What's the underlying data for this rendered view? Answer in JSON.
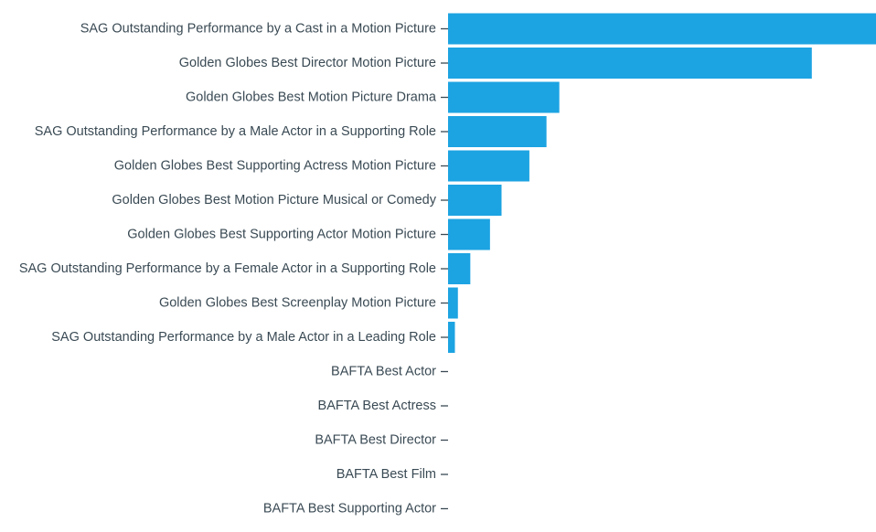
{
  "chart_data": {
    "type": "bar",
    "orientation": "horizontal",
    "title": "",
    "xlabel": "",
    "ylabel": "",
    "grid": false,
    "bar_color": "#1ca3e2",
    "text_color": "#3a4a54",
    "xlim": [
      0,
      100
    ],
    "categories": [
      "SAG Outstanding Performance by a Cast in a Motion Picture",
      "Golden Globes Best Director Motion Picture",
      "Golden Globes Best Motion Picture Drama",
      "SAG Outstanding Performance by a Male Actor in a Supporting Role",
      "Golden Globes Best Supporting Actress Motion Picture",
      "Golden Globes Best Motion Picture Musical or Comedy",
      "Golden Globes Best Supporting Actor Motion Picture",
      "SAG Outstanding Performance by a Female Actor in a Supporting Role",
      "Golden Globes Best Screenplay Motion Picture",
      "SAG Outstanding Performance by a Male Actor in a Leading Role",
      "BAFTA Best Actor",
      "BAFTA Best Actress",
      "BAFTA Best Director",
      "BAFTA Best Film",
      "BAFTA Best Supporting Actor"
    ],
    "values": [
      100,
      85,
      26,
      23,
      19,
      12.5,
      9.8,
      5.2,
      2.3,
      1.6,
      0,
      0,
      0,
      0,
      0
    ]
  }
}
